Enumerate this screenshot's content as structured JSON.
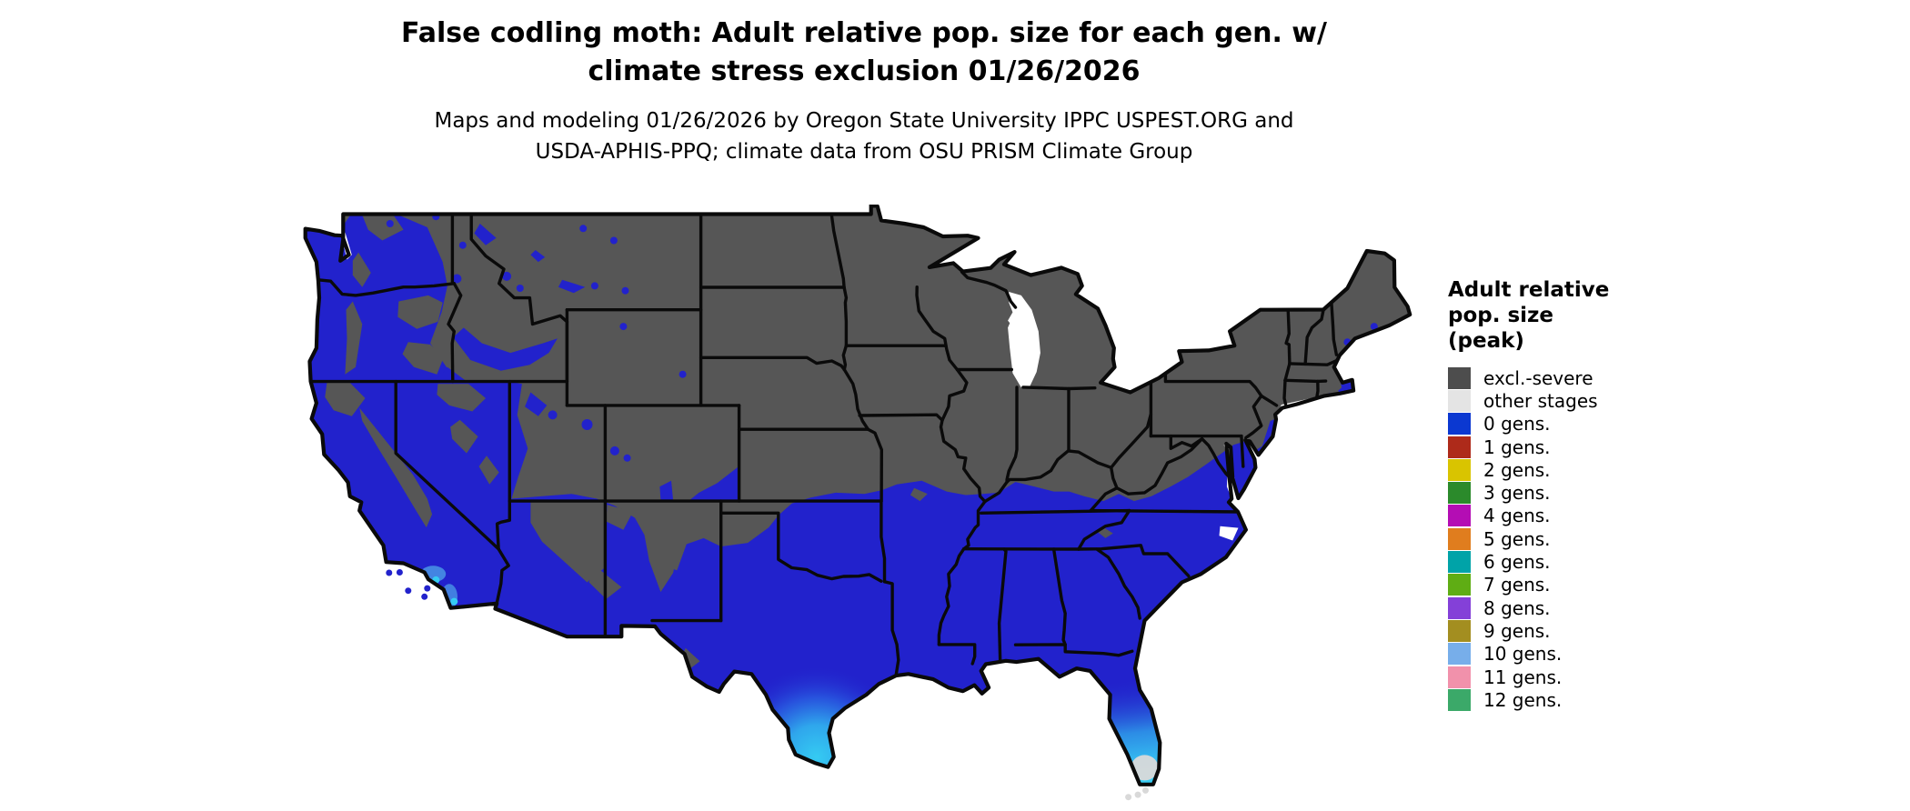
{
  "header": {
    "title_line1": "False codling moth: Adult relative pop. size for each gen. w/",
    "title_line2": "climate stress exclusion 01/26/2026",
    "subtitle_line1": "Maps and modeling 01/26/2026 by Oregon State University IPPC USPEST.ORG and",
    "subtitle_line2": "USDA-APHIS-PPQ; climate data from OSU PRISM Climate Group"
  },
  "legend": {
    "title_lines": [
      "Adult relative",
      "pop. size",
      "(peak)"
    ],
    "items": [
      {
        "label": "excl.-severe",
        "color": "#4D4D4D"
      },
      {
        "label": "other stages",
        "color": "#E4E4E4"
      },
      {
        "label": "0 gens.",
        "color": "#0B38D1"
      },
      {
        "label": "1 gens.",
        "color": "#AE2A1A"
      },
      {
        "label": "2 gens.",
        "color": "#D9C400"
      },
      {
        "label": "3 gens.",
        "color": "#2B8A2B"
      },
      {
        "label": "4 gens.",
        "color": "#B40DB4"
      },
      {
        "label": "5 gens.",
        "color": "#E07D1E"
      },
      {
        "label": "6 gens.",
        "color": "#00A3A8"
      },
      {
        "label": "7 gens.",
        "color": "#5FAD14"
      },
      {
        "label": "8 gens.",
        "color": "#8440D8"
      },
      {
        "label": "9 gens.",
        "color": "#A38E20"
      },
      {
        "label": "10 gens.",
        "color": "#77AEEA"
      },
      {
        "label": "11 gens.",
        "color": "#F191AB"
      },
      {
        "label": "12 gens.",
        "color": "#3BA969"
      }
    ]
  },
  "map": {
    "region": "Contiguous United States",
    "colors": {
      "excluded": "#565656",
      "zero_gens_blue": "#2222CC",
      "high_gens_cyan": "#35CBF2",
      "coastal_light_blue": "#4FA5EA",
      "other_stages": "#D9D9D9",
      "border": "#0A0A0A",
      "water": "#FFFFFF"
    },
    "regions": [
      {
        "area": "Northern states and mountain ranges",
        "value": "excl.-severe"
      },
      {
        "area": "Southern, Pacific and lowland western states",
        "value": "0 gens."
      },
      {
        "area": "South Texas, south Florida, southern California coast",
        "value": "gradient toward higher pop. size"
      },
      {
        "area": "Everglades and Florida Keys",
        "value": "other stages"
      }
    ]
  }
}
